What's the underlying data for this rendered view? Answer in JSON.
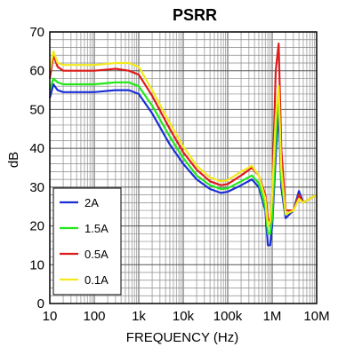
{
  "chart_data": {
    "type": "line",
    "title": "PSRR",
    "xlabel": "FREQUENCY (Hz)",
    "ylabel": "dB",
    "x_scale": "log",
    "xlim": [
      10,
      10000000
    ],
    "ylim": [
      0,
      70
    ],
    "grid": true,
    "legend_position": "bottom-left",
    "x_ticks": [
      {
        "value": 10,
        "label": "10"
      },
      {
        "value": 100,
        "label": "100"
      },
      {
        "value": 1000,
        "label": "1k"
      },
      {
        "value": 10000,
        "label": "10k"
      },
      {
        "value": 100000,
        "label": "100k"
      },
      {
        "value": 1000000,
        "label": "1M"
      },
      {
        "value": 10000000,
        "label": "10M"
      }
    ],
    "y_ticks": [
      {
        "value": 0,
        "label": "0"
      },
      {
        "value": 10,
        "label": "10"
      },
      {
        "value": 20,
        "label": "20"
      },
      {
        "value": 30,
        "label": "30"
      },
      {
        "value": 40,
        "label": "40"
      },
      {
        "value": 50,
        "label": "50"
      },
      {
        "value": 60,
        "label": "60"
      },
      {
        "value": 70,
        "label": "70"
      }
    ],
    "series": [
      {
        "name": "2A",
        "color": "#1a2fd6",
        "x": [
          10,
          12,
          15,
          20,
          50,
          100,
          300,
          600,
          1000,
          2000,
          5000,
          10000,
          20000,
          40000,
          70000,
          100000,
          200000,
          350000,
          500000,
          700000,
          800000,
          900000,
          1000000,
          1200000,
          1400000,
          1600000,
          2000000,
          3000000,
          4000000,
          5000000,
          7000000,
          10000000
        ],
        "values": [
          53,
          56.5,
          55,
          54.5,
          54.5,
          54.5,
          55,
          55,
          54,
          49,
          41,
          36,
          32,
          29.5,
          28.5,
          28.8,
          30.5,
          32,
          30,
          24,
          15,
          15,
          20,
          38,
          50,
          30,
          22,
          24,
          29,
          26,
          27,
          28
        ]
      },
      {
        "name": "1.5A",
        "color": "#22e81a",
        "x": [
          10,
          12,
          15,
          20,
          50,
          100,
          300,
          600,
          1000,
          2000,
          5000,
          10000,
          20000,
          40000,
          70000,
          100000,
          200000,
          350000,
          500000,
          700000,
          800000,
          900000,
          1000000,
          1200000,
          1400000,
          1600000,
          2000000,
          3000000,
          4000000,
          5000000,
          7000000,
          10000000
        ],
        "values": [
          55,
          58,
          57,
          56.5,
          56.5,
          56.5,
          57,
          57,
          56,
          51,
          43,
          37.5,
          33,
          30.5,
          29.5,
          29.7,
          31.5,
          33,
          31,
          25,
          18,
          18,
          22,
          42,
          55,
          32,
          23,
          24,
          28,
          26,
          27,
          28
        ]
      },
      {
        "name": "0.5A",
        "color": "#e01a1a",
        "x": [
          10,
          12,
          15,
          20,
          50,
          100,
          300,
          600,
          1000,
          2000,
          5000,
          10000,
          20000,
          40000,
          70000,
          100000,
          200000,
          350000,
          500000,
          700000,
          800000,
          900000,
          1000000,
          1200000,
          1400000,
          1600000,
          2000000,
          3000000,
          4000000,
          5000000,
          7000000,
          10000000
        ],
        "values": [
          58,
          64,
          61,
          60,
          60,
          60,
          60.5,
          60,
          59,
          53.5,
          45,
          39,
          34.5,
          31.5,
          30.5,
          30.8,
          33,
          35,
          33,
          28,
          22,
          21,
          28,
          60,
          67,
          40,
          24,
          24,
          28,
          26,
          27,
          28
        ]
      },
      {
        "name": "0.1A",
        "color": "#f2ea1a",
        "x": [
          10,
          12,
          15,
          20,
          50,
          100,
          300,
          600,
          1000,
          2000,
          5000,
          10000,
          20000,
          40000,
          70000,
          100000,
          200000,
          350000,
          500000,
          700000,
          800000,
          900000,
          1000000,
          1200000,
          1400000,
          1600000,
          2000000,
          3000000,
          4000000,
          5000000,
          7000000,
          10000000
        ],
        "values": [
          60,
          65,
          62,
          61.5,
          61.5,
          61.5,
          62,
          62,
          61,
          55,
          46.5,
          40.5,
          35.5,
          32.5,
          31.5,
          31.8,
          34,
          35.5,
          33,
          27,
          20,
          21,
          28,
          48,
          56,
          35,
          23,
          24,
          27,
          26,
          27,
          28
        ]
      }
    ]
  }
}
